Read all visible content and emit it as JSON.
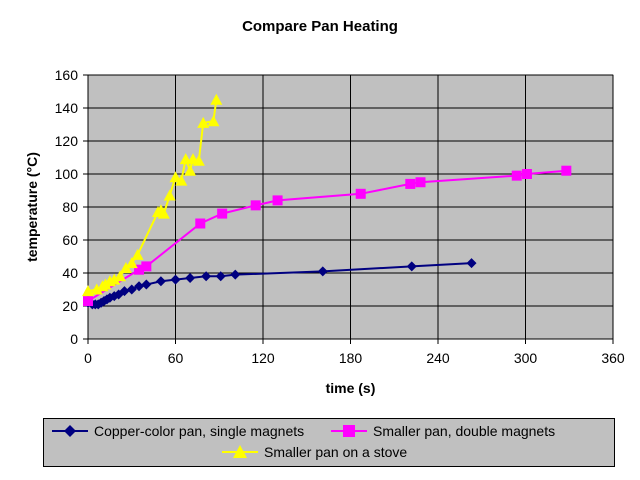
{
  "chart_data": {
    "type": "line",
    "title": "Compare Pan Heating",
    "xlabel": "time (s)",
    "ylabel": "temperature (°C)",
    "xlim": [
      0,
      360
    ],
    "ylim": [
      0,
      160
    ],
    "xticks": [
      0,
      60,
      120,
      180,
      240,
      300,
      360
    ],
    "yticks": [
      0,
      20,
      40,
      60,
      80,
      100,
      120,
      140,
      160
    ],
    "grid": true,
    "legend": "bottom",
    "plot_background": "#c0c0c0",
    "series": [
      {
        "name": "Copper-color pan, single magnets",
        "color": "#000080",
        "marker": "diamond",
        "x": [
          0,
          3,
          5,
          7,
          9,
          11,
          13,
          15,
          18,
          21,
          25,
          30,
          35,
          40,
          50,
          60,
          70,
          81,
          91,
          101,
          161,
          222,
          263
        ],
        "y": [
          22,
          21,
          21,
          21,
          22,
          23,
          24,
          25,
          26,
          27,
          29,
          30,
          32,
          33,
          35,
          36,
          37,
          38,
          38,
          39,
          41,
          44,
          46
        ]
      },
      {
        "name": "Smaller pan, double magnets",
        "color": "#ff00ff",
        "marker": "square",
        "x": [
          0,
          35,
          40,
          77,
          92,
          115,
          130,
          187,
          221,
          228,
          294,
          301,
          328
        ],
        "y": [
          23,
          42,
          44,
          70,
          76,
          81,
          84,
          88,
          94,
          95,
          99,
          100,
          102
        ]
      },
      {
        "name": "Smaller pan on a stove",
        "color": "#ffff00",
        "marker": "triangle",
        "x": [
          0,
          6,
          10,
          12,
          15,
          18,
          22,
          26,
          30,
          34,
          48,
          50,
          52,
          56,
          60,
          64,
          67,
          70,
          72,
          76,
          79,
          86,
          88
        ],
        "y": [
          29,
          30,
          32,
          33,
          35,
          36,
          38,
          43,
          46,
          51,
          77,
          78,
          76,
          87,
          98,
          96,
          109,
          102,
          109,
          108,
          131,
          132,
          145
        ]
      }
    ]
  }
}
